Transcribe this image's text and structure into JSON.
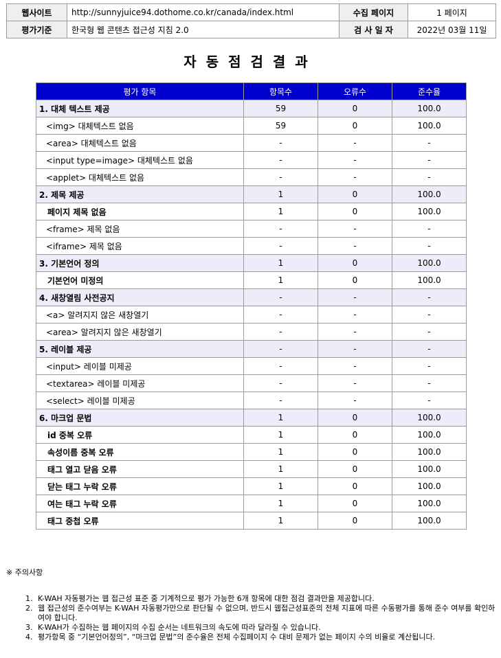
{
  "info": {
    "website_label": "웹사이트",
    "website_url": "http://sunnyjuice94.dothome.co.kr/canada/index.html",
    "pages_label": "수집 페이지",
    "pages_value": "1 페이지",
    "standard_label": "평가기준",
    "standard_value": "한국형 웹 콘텐츠 접근성 지침 2.0",
    "date_label": "검 사 일 자",
    "date_value": "2022년 03월 11일"
  },
  "title": "자동점검결과",
  "table": {
    "headers": [
      "평가 항목",
      "항목수",
      "오류수",
      "준수율"
    ],
    "rows": [
      {
        "kind": "cat",
        "name": "1. 대체 텍스트 제공",
        "count": "59",
        "errors": "0",
        "rate": "100.0"
      },
      {
        "kind": "sub",
        "name": "<img> 대체텍스트 없음",
        "count": "59",
        "errors": "0",
        "rate": "100.0"
      },
      {
        "kind": "sub",
        "name": "<area> 대체텍스트 없음",
        "count": "-",
        "errors": "-",
        "rate": "-"
      },
      {
        "kind": "sub",
        "name": "<input type=image> 대체텍스트 없음",
        "count": "-",
        "errors": "-",
        "rate": "-"
      },
      {
        "kind": "sub",
        "name": "<applet> 대체텍스트 없음",
        "count": "-",
        "errors": "-",
        "rate": "-"
      },
      {
        "kind": "cat",
        "name": "2. 제목 제공",
        "count": "1",
        "errors": "0",
        "rate": "100.0"
      },
      {
        "kind": "sub b",
        "name": "페이지 제목 없음",
        "count": "1",
        "errors": "0",
        "rate": "100.0"
      },
      {
        "kind": "sub",
        "name": "<frame> 제목 없음",
        "count": "-",
        "errors": "-",
        "rate": "-"
      },
      {
        "kind": "sub",
        "name": "<iframe> 제목 없음",
        "count": "-",
        "errors": "-",
        "rate": "-"
      },
      {
        "kind": "cat",
        "name": "3. 기본언어 정의",
        "count": "1",
        "errors": "0",
        "rate": "100.0"
      },
      {
        "kind": "sub b",
        "name": "기본언어 미정의",
        "count": "1",
        "errors": "0",
        "rate": "100.0"
      },
      {
        "kind": "cat",
        "name": "4. 새창열림 사전공지",
        "count": "-",
        "errors": "-",
        "rate": "-"
      },
      {
        "kind": "sub",
        "name": "<a> 알려지지 않은 새창열기",
        "count": "-",
        "errors": "-",
        "rate": "-"
      },
      {
        "kind": "sub",
        "name": "<area> 알려지지 않은 새창열기",
        "count": "-",
        "errors": "-",
        "rate": "-"
      },
      {
        "kind": "cat",
        "name": "5. 레이블 제공",
        "count": "-",
        "errors": "-",
        "rate": "-"
      },
      {
        "kind": "sub",
        "name": "<input> 레이블 미제공",
        "count": "-",
        "errors": "-",
        "rate": "-"
      },
      {
        "kind": "sub",
        "name": "<textarea> 레이블 미제공",
        "count": "-",
        "errors": "-",
        "rate": "-"
      },
      {
        "kind": "sub",
        "name": "<select> 레이블 미제공",
        "count": "-",
        "errors": "-",
        "rate": "-"
      },
      {
        "kind": "cat",
        "name": "6. 마크업 문법",
        "count": "1",
        "errors": "0",
        "rate": "100.0"
      },
      {
        "kind": "sub b",
        "name": "id 중복 오류",
        "count": "1",
        "errors": "0",
        "rate": "100.0"
      },
      {
        "kind": "sub b",
        "name": "속성이름 중복 오류",
        "count": "1",
        "errors": "0",
        "rate": "100.0"
      },
      {
        "kind": "sub b",
        "name": "태그 열고 닫음 오류",
        "count": "1",
        "errors": "0",
        "rate": "100.0"
      },
      {
        "kind": "sub b",
        "name": "닫는 태그 누락 오류",
        "count": "1",
        "errors": "0",
        "rate": "100.0"
      },
      {
        "kind": "sub b",
        "name": "여는 태그 누락 오류",
        "count": "1",
        "errors": "0",
        "rate": "100.0"
      },
      {
        "kind": "sub b",
        "name": "태그 중첩 오류",
        "count": "1",
        "errors": "0",
        "rate": "100.0"
      }
    ]
  },
  "notes": {
    "title": "※ 주의사항",
    "items": [
      "K-WAH 자동평가는 웹 접근성 표준 중 기계적으로 평가 가능한 6개 항목에 대한 점검 결과만을 제공합니다.",
      "웹 접근성의 준수여부는 K-WAH 자동평가만으로 판단될 수 없으며, 반드시 웹접근성표준의 전체 지표에 따른 수동평가를 통해 준수 여부를 확인하여야 합니다.",
      "K-WAH가 수집하는 웹 페이지의 수집 순서는 네트워크의 속도에 따라 달라질 수 있습니다.",
      "평가항목 중 “기본언어정의”, “마크업 문법”의 준수율은 전체 수집페이지 수 대비 문제가 없는 페이지 수의 비율로 계산됩니다."
    ]
  }
}
